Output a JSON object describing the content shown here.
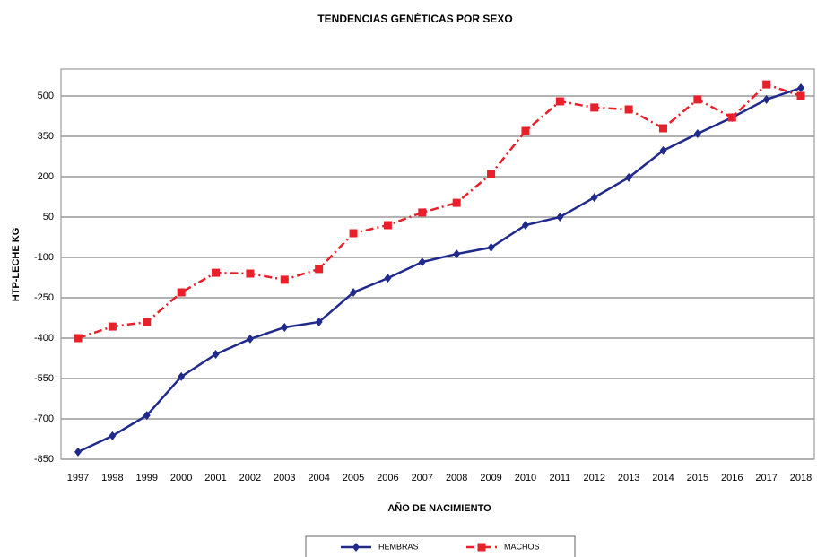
{
  "chart_data": {
    "type": "line",
    "title": "TENDENCIAS GENÉTICAS POR SEXO",
    "x_label": "AÑO DE NACIMIENTO",
    "y_label": "HTP-LECHE KG",
    "categories": [
      "1997",
      "1998",
      "1999",
      "2000",
      "2001",
      "2002",
      "2003",
      "2004",
      "2005",
      "2006",
      "2007",
      "2008",
      "2009",
      "2010",
      "2011",
      "2012",
      "2013",
      "2014",
      "2015",
      "2016",
      "2017",
      "2018"
    ],
    "series": [
      {
        "name": "HEMBRAS",
        "color": "#1f2a8c",
        "marker": "diamond",
        "linestyle": "solid",
        "values": [
          -823,
          -763,
          -687,
          -543,
          -460,
          -403,
          -360,
          -340,
          -230,
          -177,
          -117,
          -87,
          -63,
          20,
          50,
          123,
          197,
          297,
          360,
          420,
          487,
          530
        ]
      },
      {
        "name": "MACHOS",
        "color": "#e8202a",
        "marker": "square",
        "linestyle": "dashdot",
        "values": [
          -400,
          -357,
          -340,
          -230,
          -157,
          -160,
          -183,
          -143,
          -10,
          20,
          67,
          103,
          210,
          370,
          480,
          457,
          450,
          380,
          487,
          420,
          543,
          500
        ]
      }
    ],
    "ylim": [
      -850,
      600
    ],
    "yticks": [
      -850,
      -700,
      -550,
      -400,
      -250,
      -100,
      50,
      200,
      350,
      500
    ],
    "grid": true,
    "legend": "bottom"
  }
}
